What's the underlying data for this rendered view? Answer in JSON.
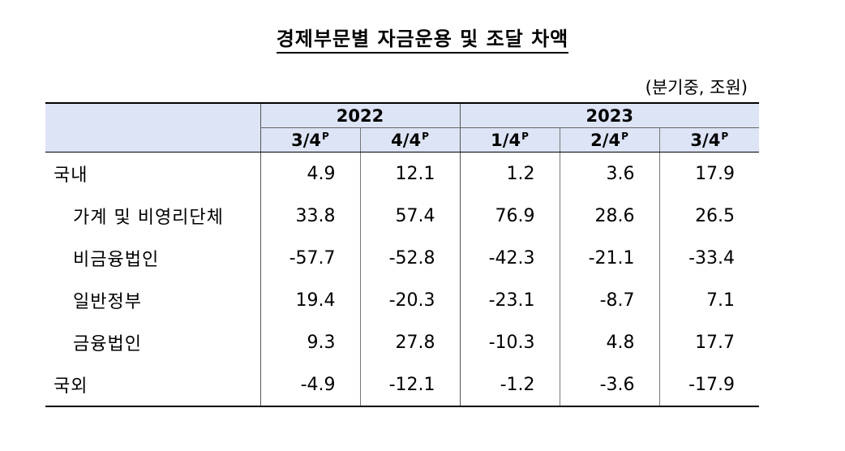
{
  "title": "경제부문별 자금운용 및 조달 차액",
  "unit": "(분기중, 조원)",
  "header": {
    "years": [
      {
        "label": "2022"
      },
      {
        "label": "2023"
      }
    ],
    "quarters": [
      {
        "label": "3/4",
        "suffix": "P"
      },
      {
        "label": "4/4",
        "suffix": "P"
      },
      {
        "label": "1/4",
        "suffix": "P"
      },
      {
        "label": "2/4",
        "suffix": "P"
      },
      {
        "label": "3/4",
        "suffix": "P"
      }
    ]
  },
  "rows": [
    {
      "label": "국내",
      "values": [
        "4.9",
        "12.1",
        "1.2",
        "3.6",
        "17.9"
      ]
    },
    {
      "label": "가계 및 비영리단체",
      "values": [
        "33.8",
        "57.4",
        "76.9",
        "28.6",
        "26.5"
      ]
    },
    {
      "label": "비금융법인",
      "values": [
        "-57.7",
        "-52.8",
        "-42.3",
        "-21.1",
        "-33.4"
      ]
    },
    {
      "label": "일반정부",
      "values": [
        "19.4",
        "-20.3",
        "-23.1",
        "-8.7",
        "7.1"
      ]
    },
    {
      "label": "금융법인",
      "values": [
        "9.3",
        "27.8",
        "-10.3",
        "4.8",
        "17.7"
      ]
    },
    {
      "label": "국외",
      "values": [
        "-4.9",
        "-12.1",
        "-1.2",
        "-3.6",
        "-17.9"
      ]
    }
  ],
  "colors": {
    "header_background": "#dde4f5"
  }
}
